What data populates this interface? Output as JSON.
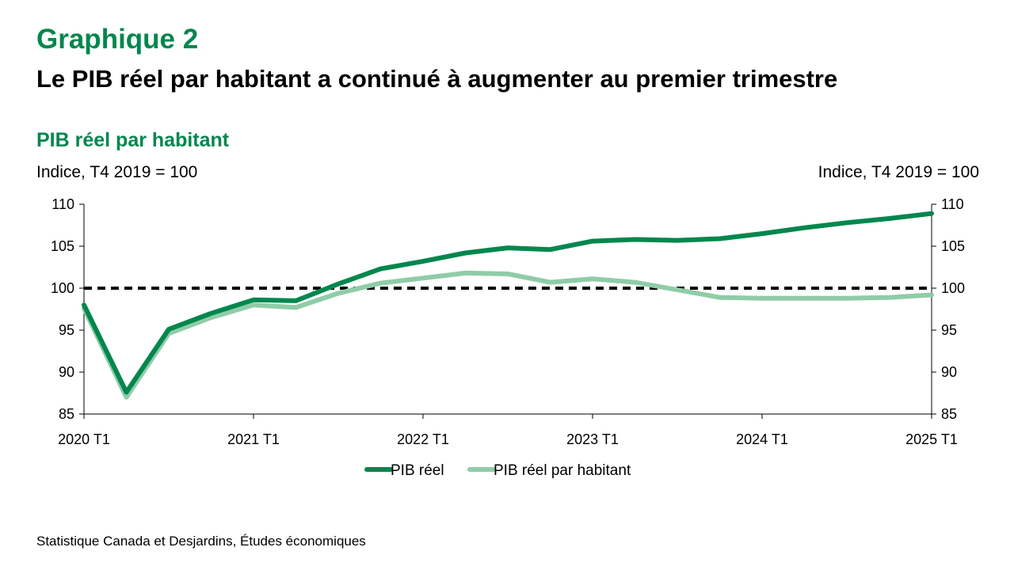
{
  "header": {
    "heading": "Graphique 2",
    "subheading": "Le PIB réel par habitant a continué à augmenter au premier trimestre"
  },
  "footer": {
    "source": "Statistique Canada et Desjardins, Études économiques"
  },
  "colors": {
    "heading": "#00874E",
    "pib": "#00874E",
    "pib_habitant": "#8FCCA8",
    "reference_line": "#000000",
    "axis": "#000000"
  },
  "chart_data": {
    "type": "line",
    "title": "PIB réel par habitant",
    "ylabel_left": "Indice, T4 2019 = 100",
    "ylabel_right": "Indice, T4 2019 = 100",
    "ylim": [
      85,
      110
    ],
    "yticks": [
      85,
      90,
      95,
      100,
      105,
      110
    ],
    "x": [
      "2020 T1",
      "2020 T2",
      "2020 T3",
      "2020 T4",
      "2021 T1",
      "2021 T2",
      "2021 T3",
      "2021 T4",
      "2022 T1",
      "2022 T2",
      "2022 T3",
      "2022 T4",
      "2023 T1",
      "2023 T2",
      "2023 T3",
      "2023 T4",
      "2024 T1",
      "2024 T2",
      "2024 T3",
      "2024 T4",
      "2025 T1"
    ],
    "xtick_labels": [
      "2020 T1",
      "2021 T1",
      "2022 T1",
      "2023 T1",
      "2024 T1",
      "2025 T1"
    ],
    "series": [
      {
        "name": "PIB réel",
        "color": "#00874E",
        "values": [
          98.0,
          87.6,
          95.1,
          97.0,
          98.6,
          98.5,
          100.5,
          102.3,
          103.2,
          104.2,
          104.8,
          104.6,
          105.6,
          105.8,
          105.7,
          105.9,
          106.5,
          107.2,
          107.8,
          108.3,
          108.9
        ]
      },
      {
        "name": "PIB réel par habitant",
        "color": "#8FCCA8",
        "values": [
          97.6,
          87.0,
          94.6,
          96.5,
          98.0,
          97.7,
          99.4,
          100.6,
          101.2,
          101.8,
          101.7,
          100.7,
          101.1,
          100.7,
          99.8,
          98.9,
          98.8,
          98.8,
          98.8,
          98.9,
          99.2
        ]
      }
    ],
    "reference_line": {
      "value": 100,
      "style": "dashed"
    },
    "grid": false,
    "legend": "bottom"
  }
}
